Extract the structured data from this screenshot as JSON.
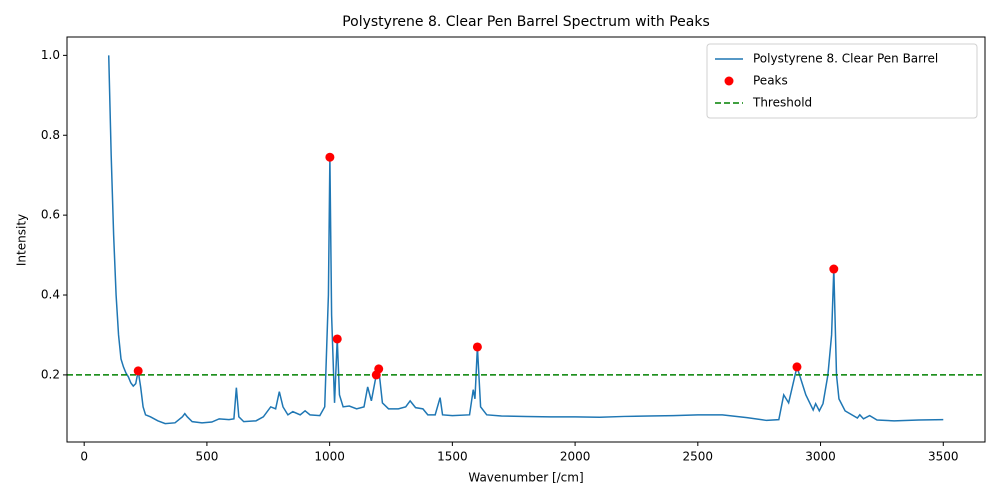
{
  "chart_data": {
    "type": "line",
    "title": "Polystyrene 8. Clear Pen Barrel Spectrum with Peaks",
    "x_label": "Wavenumber [/cm]",
    "y_label": "Intensity",
    "xlim": [
      -70,
      3670
    ],
    "ylim": [
      0.032,
      1.046
    ],
    "xticks": [
      0,
      500,
      1000,
      1500,
      2000,
      2500,
      3000,
      3500
    ],
    "yticks": [
      0.2,
      0.4,
      0.6,
      0.8,
      {
        "value": 1,
        "label": "1.0"
      }
    ],
    "grid": false,
    "legend": "upper right",
    "x": [
      100,
      110,
      120,
      130,
      140,
      150,
      160,
      170,
      180,
      190,
      200,
      210,
      220,
      230,
      240,
      250,
      270,
      300,
      330,
      370,
      400,
      410,
      420,
      440,
      480,
      520,
      550,
      590,
      610,
      620,
      630,
      650,
      700,
      730,
      760,
      780,
      795,
      810,
      830,
      850,
      880,
      900,
      920,
      960,
      980,
      995,
      1001,
      1008,
      1020,
      1031,
      1040,
      1055,
      1080,
      1110,
      1140,
      1155,
      1170,
      1190,
      1200,
      1215,
      1240,
      1280,
      1310,
      1328,
      1350,
      1380,
      1400,
      1430,
      1450,
      1460,
      1500,
      1570,
      1585,
      1592,
      1602,
      1615,
      1640,
      1700,
      1800,
      1900,
      2000,
      2100,
      2200,
      2300,
      2400,
      2500,
      2600,
      2700,
      2780,
      2830,
      2850,
      2870,
      2904,
      2940,
      2970,
      2980,
      2995,
      3010,
      3030,
      3045,
      3054,
      3065,
      3075,
      3100,
      3150,
      3160,
      3175,
      3200,
      3230,
      3300,
      3400,
      3500
    ],
    "series": [
      {
        "name": "Polystyrene 8. Clear Pen Barrel",
        "color": "#1f77b4",
        "values": [
          1.0,
          0.75,
          0.55,
          0.4,
          0.3,
          0.24,
          0.22,
          0.205,
          0.195,
          0.18,
          0.172,
          0.178,
          0.21,
          0.17,
          0.12,
          0.1,
          0.095,
          0.085,
          0.078,
          0.08,
          0.095,
          0.103,
          0.095,
          0.083,
          0.08,
          0.082,
          0.09,
          0.088,
          0.09,
          0.168,
          0.095,
          0.083,
          0.085,
          0.095,
          0.12,
          0.115,
          0.158,
          0.12,
          0.1,
          0.108,
          0.1,
          0.11,
          0.1,
          0.098,
          0.12,
          0.4,
          0.745,
          0.35,
          0.13,
          0.29,
          0.15,
          0.12,
          0.122,
          0.115,
          0.12,
          0.17,
          0.135,
          0.2,
          0.215,
          0.13,
          0.115,
          0.115,
          0.12,
          0.135,
          0.118,
          0.115,
          0.1,
          0.1,
          0.143,
          0.1,
          0.098,
          0.1,
          0.163,
          0.14,
          0.27,
          0.12,
          0.1,
          0.097,
          0.096,
          0.095,
          0.095,
          0.094,
          0.096,
          0.097,
          0.098,
          0.1,
          0.1,
          0.093,
          0.086,
          0.088,
          0.15,
          0.13,
          0.22,
          0.15,
          0.112,
          0.128,
          0.11,
          0.128,
          0.2,
          0.3,
          0.465,
          0.2,
          0.14,
          0.11,
          0.092,
          0.1,
          0.09,
          0.098,
          0.087,
          0.085,
          0.087,
          0.088
        ]
      }
    ],
    "peaks": {
      "name": "Peaks",
      "color": "#ff0000",
      "x": [
        220,
        1001,
        1031,
        1190,
        1200,
        1602,
        2904,
        3054
      ],
      "values": [
        0.21,
        0.745,
        0.29,
        0.2,
        0.215,
        0.27,
        0.22,
        0.465
      ]
    },
    "threshold": {
      "name": "Threshold",
      "color": "#008000",
      "value": 0.2
    }
  }
}
